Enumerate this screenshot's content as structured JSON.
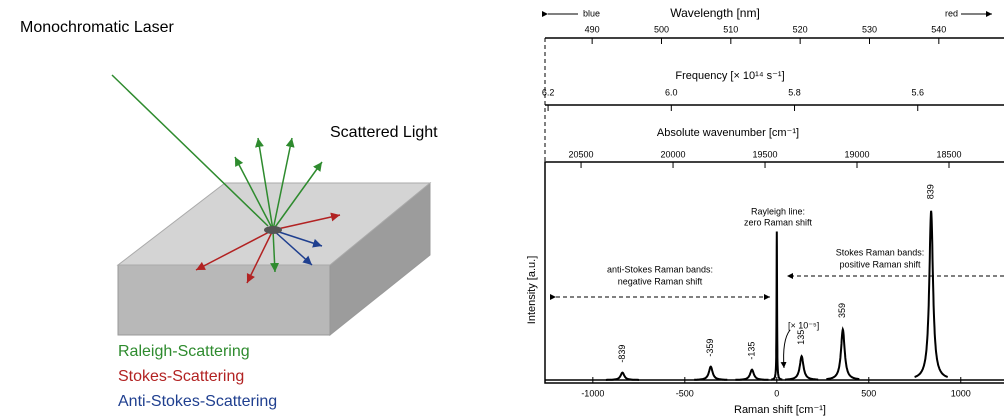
{
  "diagram": {
    "laser_label": "Monochromatic Laser",
    "scattered_label": "Scattered Light",
    "legend": [
      "Raleigh-Scattering",
      "Stokes-Scattering",
      "Anti-Stokes-Scattering"
    ]
  },
  "chart_data": {
    "type": "line",
    "x_label": "Raman shift [cm⁻¹]",
    "y_label": "Intensity [a.u.]",
    "x": [
      -839,
      -359,
      -135,
      0,
      135,
      359,
      839
    ],
    "values": [
      0.05,
      0.09,
      0.07,
      1.0,
      0.16,
      0.34,
      1.14
    ],
    "color": "#000000",
    "xlim": [
      -1260,
      1235
    ],
    "xticks": [
      -1000,
      -500,
      0,
      500,
      1000
    ],
    "ylim": [
      0,
      1.3
    ],
    "wavelength_axis": {
      "label": "Wavelength [nm]",
      "lim": [
        483.2,
        549.4
      ],
      "ticks": [
        490,
        500,
        510,
        520,
        530,
        540
      ]
    },
    "frequency_axis": {
      "label": "Frequency [× 10¹⁴ s⁻¹]",
      "lim": [
        6.205,
        5.46
      ],
      "ticks": [
        6.2,
        {
          "value": 6,
          "label": "6.0"
        },
        5.8,
        5.6
      ]
    },
    "wavenumber_axis": {
      "label": "Absolute wavenumber [cm⁻¹]",
      "lim": [
        20696,
        18201
      ],
      "ticks": [
        20500,
        20000,
        19500,
        19000,
        18500
      ]
    },
    "blue_label": "blue",
    "red_label": "red",
    "rayleigh_annotation": [
      "Rayleigh line:",
      "zero Raman shift"
    ],
    "anti_stokes_annotation": [
      "anti-Stokes Raman bands:",
      "negative Raman shift"
    ],
    "stokes_annotation": [
      "Stokes Raman bands:",
      "positive Raman shift"
    ],
    "scale_annotation": "[× 10⁻⁵]"
  }
}
